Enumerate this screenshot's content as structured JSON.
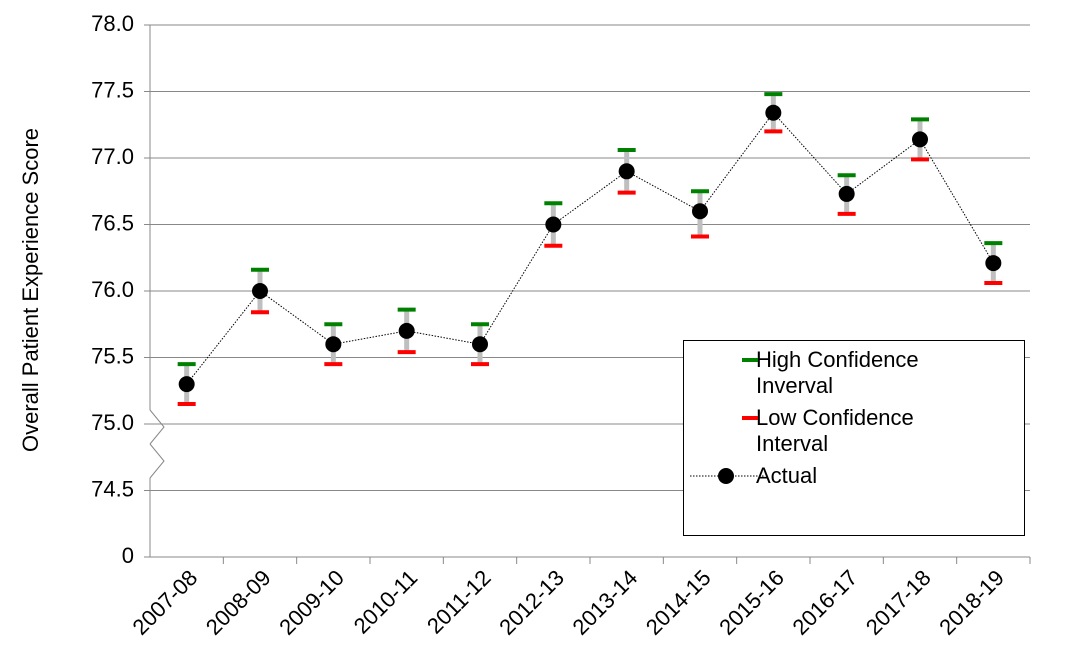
{
  "chart_data": {
    "type": "line",
    "y_label": "Overall Patient Experience Score",
    "categories": [
      "2007-08",
      "2008-09",
      "2009-10",
      "2010-11",
      "2011-12",
      "2012-13",
      "2013-14",
      "2014-15",
      "2015-16",
      "2016-17",
      "2017-18",
      "2018-19"
    ],
    "series": [
      {
        "name": "High Confidence Inverval",
        "color": "#008000",
        "values": [
          75.45,
          76.16,
          75.75,
          75.86,
          75.75,
          76.66,
          77.06,
          76.75,
          77.48,
          76.87,
          77.29,
          76.36
        ]
      },
      {
        "name": "Low Confidence Interval",
        "color": "#ff0000",
        "values": [
          75.15,
          75.84,
          75.45,
          75.54,
          75.45,
          76.34,
          76.74,
          76.41,
          77.2,
          76.58,
          76.99,
          76.06
        ]
      },
      {
        "name": "Actual",
        "color": "#000000",
        "values": [
          75.3,
          76.0,
          75.6,
          75.7,
          75.6,
          76.5,
          76.9,
          76.6,
          77.34,
          76.73,
          77.14,
          76.21
        ]
      }
    ],
    "ylim": [
      0,
      78.0
    ],
    "yticks": [
      0,
      {
        "value": 74.5,
        "label": "74.5"
      },
      {
        "value": 75.0,
        "label": "75.0"
      },
      {
        "value": 75.5,
        "label": "75.5"
      },
      {
        "value": 76.0,
        "label": "76.0"
      },
      {
        "value": 76.5,
        "label": "76.5"
      },
      {
        "value": 77.0,
        "label": "77.0"
      },
      {
        "value": 77.5,
        "label": "77.5"
      },
      {
        "value": 78.0,
        "label": "78.0"
      }
    ],
    "axis_break": true,
    "grid": true,
    "interval_color": "#bfbfbf"
  }
}
